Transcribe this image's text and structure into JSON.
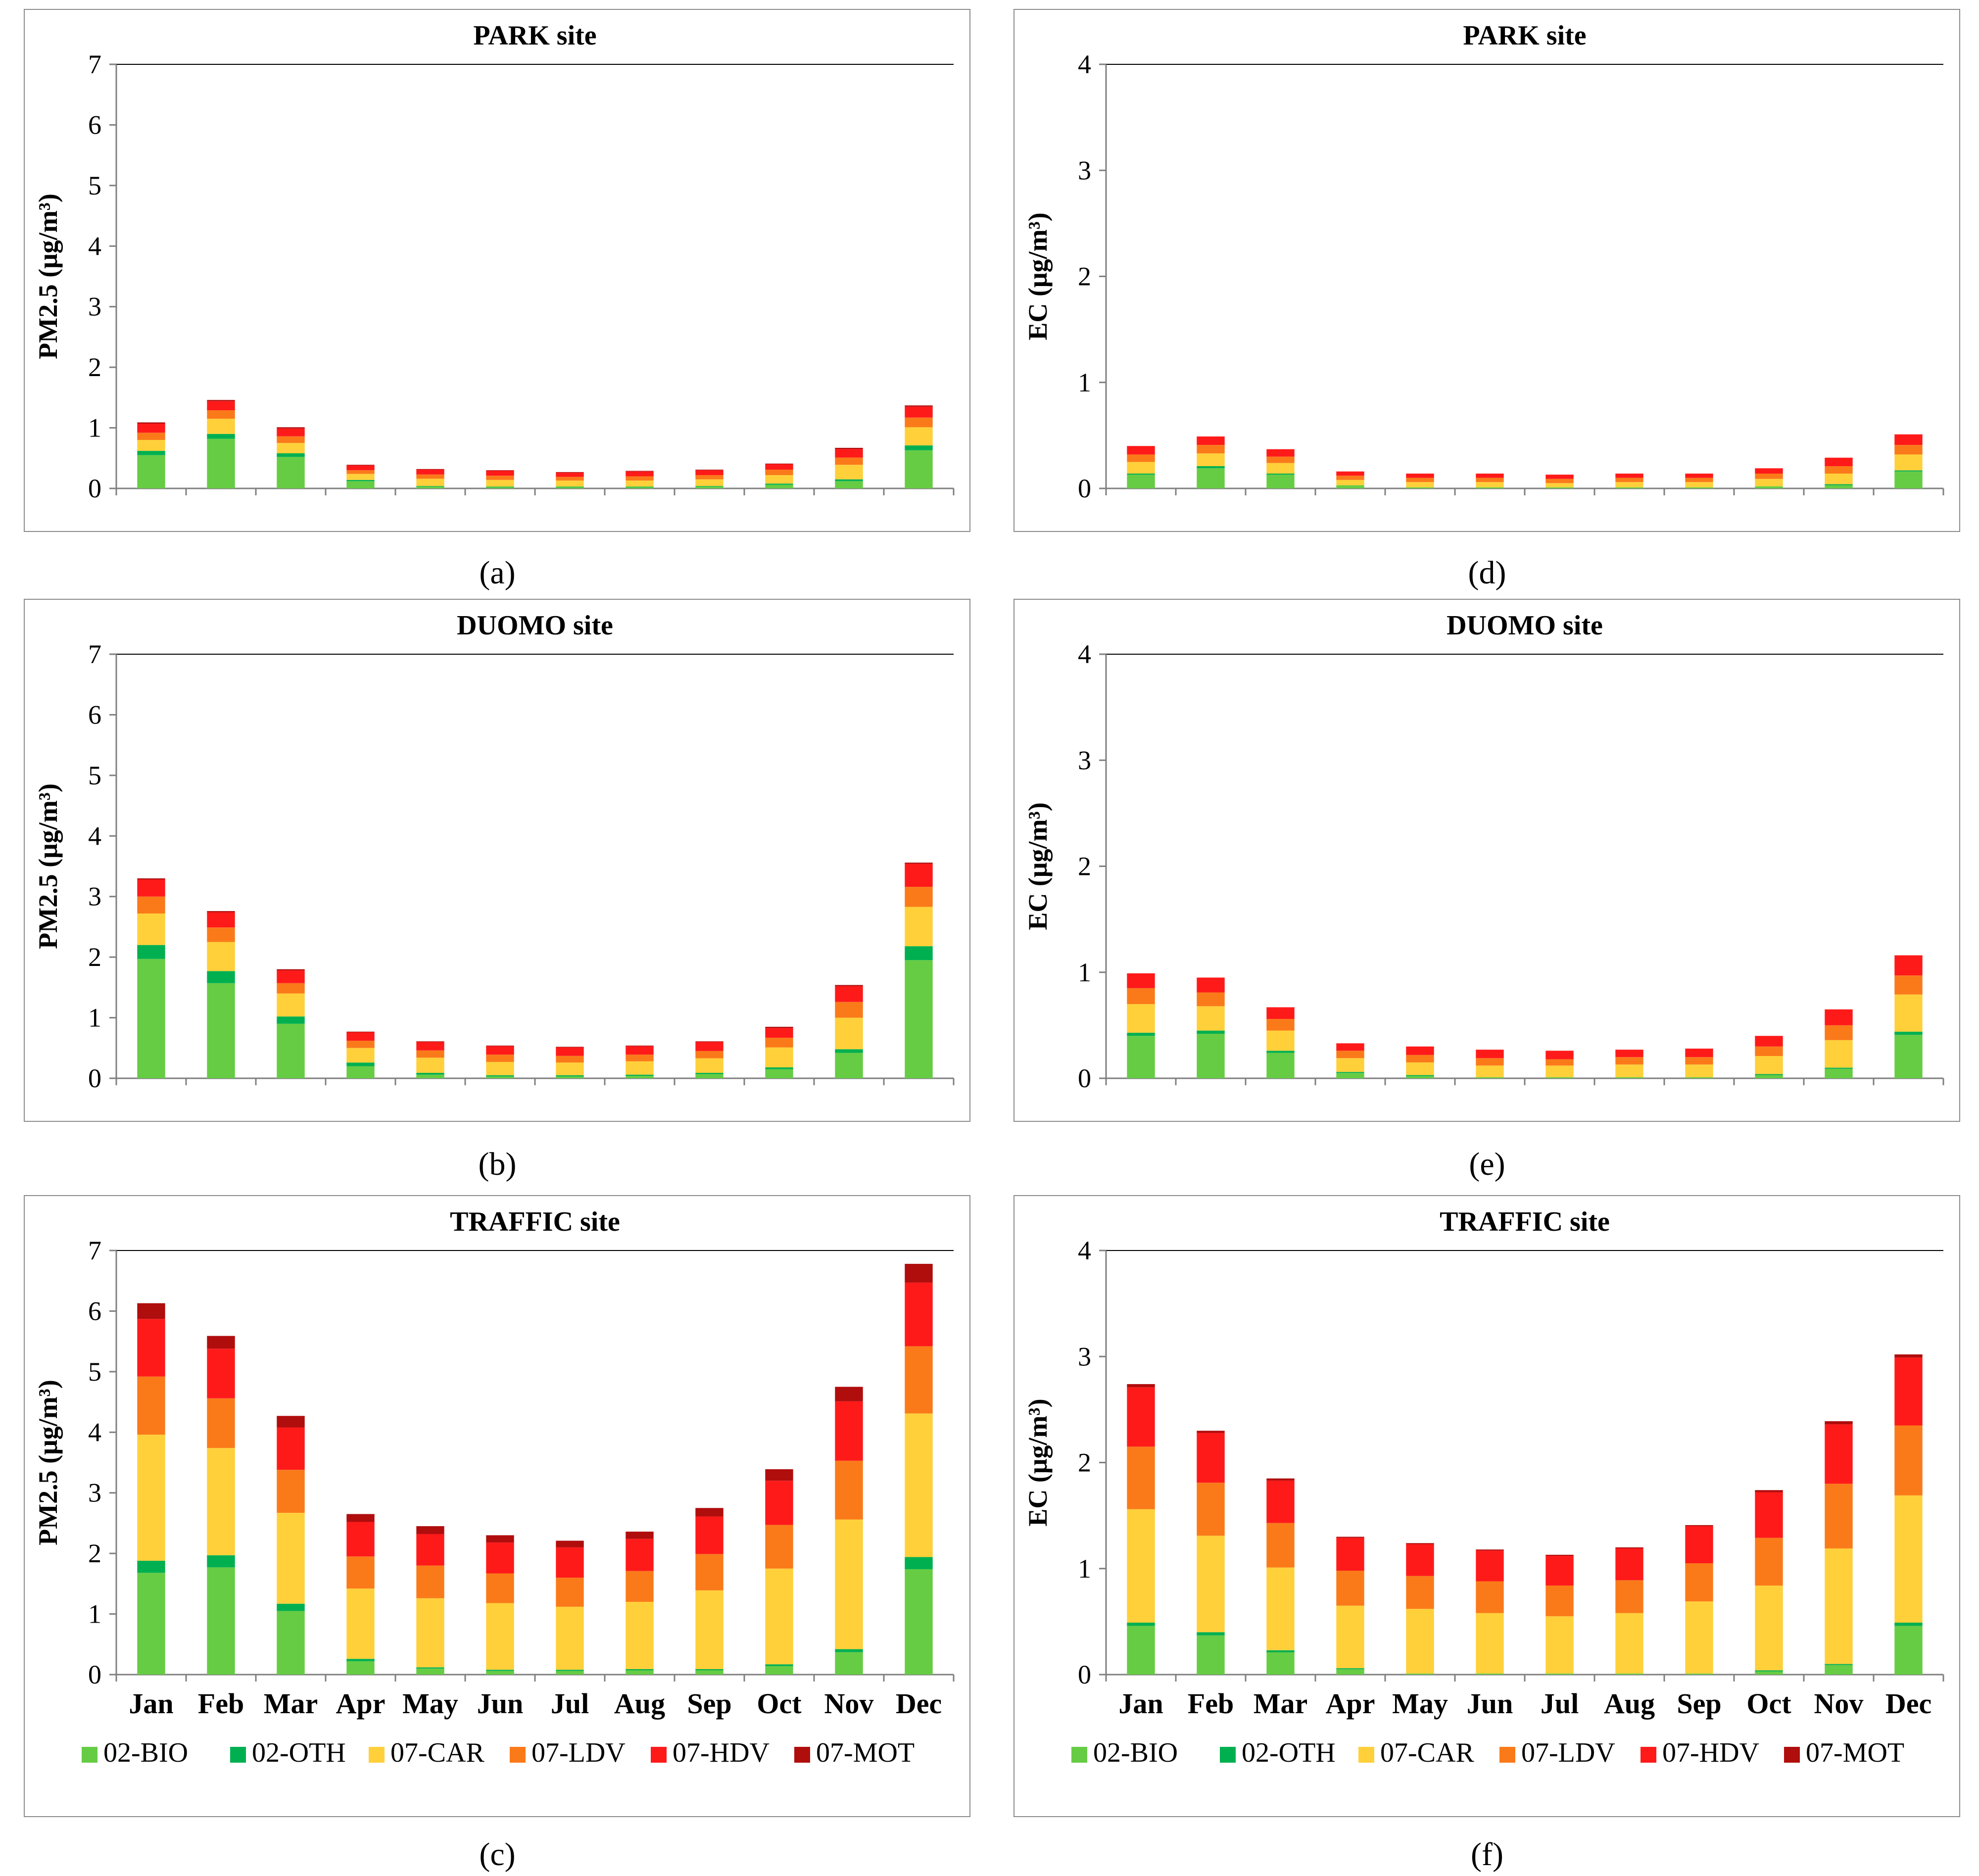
{
  "months": [
    "Jan",
    "Feb",
    "Mar",
    "Apr",
    "May",
    "Jun",
    "Jul",
    "Aug",
    "Sep",
    "Oct",
    "Nov",
    "Dec"
  ],
  "legend": [
    {
      "name": "02-BIO",
      "color": "#66cc44"
    },
    {
      "name": "02-OTH",
      "color": "#00b050"
    },
    {
      "name": "07-CAR",
      "color": "#ffd03a"
    },
    {
      "name": "07-LDV",
      "color": "#fa7a1a"
    },
    {
      "name": "07-HDV",
      "color": "#ff1a1a"
    },
    {
      "name": "07-MOT",
      "color": "#b00d0d"
    }
  ],
  "chart_data": [
    {
      "id": "a",
      "caption": "(a)",
      "type": "bar",
      "stacked": true,
      "title": "PARK site",
      "ylabel": "PM2.5 (μg/m³)",
      "ylim": [
        0,
        7
      ],
      "yticks": [
        0,
        1,
        2,
        3,
        4,
        5,
        6,
        7
      ],
      "show_xticklabels": false,
      "series": [
        {
          "name": "02-BIO",
          "values": [
            0.55,
            0.82,
            0.52,
            0.12,
            0.03,
            0.02,
            0.02,
            0.02,
            0.03,
            0.06,
            0.12,
            0.63
          ]
        },
        {
          "name": "02-OTH",
          "values": [
            0.07,
            0.08,
            0.06,
            0.02,
            0.01,
            0.01,
            0.01,
            0.01,
            0.01,
            0.02,
            0.03,
            0.08
          ]
        },
        {
          "name": "07-CAR",
          "values": [
            0.18,
            0.25,
            0.17,
            0.1,
            0.12,
            0.11,
            0.1,
            0.1,
            0.11,
            0.14,
            0.24,
            0.3
          ]
        },
        {
          "name": "07-LDV",
          "values": [
            0.12,
            0.14,
            0.11,
            0.06,
            0.07,
            0.07,
            0.06,
            0.07,
            0.07,
            0.09,
            0.12,
            0.16
          ]
        },
        {
          "name": "07-HDV",
          "values": [
            0.15,
            0.15,
            0.13,
            0.08,
            0.08,
            0.08,
            0.07,
            0.08,
            0.08,
            0.09,
            0.14,
            0.18
          ]
        },
        {
          "name": "07-MOT",
          "values": [
            0.02,
            0.02,
            0.02,
            0.01,
            0.01,
            0.01,
            0.01,
            0.01,
            0.01,
            0.01,
            0.02,
            0.02
          ]
        }
      ]
    },
    {
      "id": "b",
      "caption": "(b)",
      "type": "bar",
      "stacked": true,
      "title": "DUOMO site",
      "ylabel": "PM2.5 (μg/m³)",
      "ylim": [
        0,
        7
      ],
      "yticks": [
        0,
        1,
        2,
        3,
        4,
        5,
        6,
        7
      ],
      "show_xticklabels": false,
      "series": [
        {
          "name": "02-BIO",
          "values": [
            1.97,
            1.57,
            0.9,
            0.2,
            0.06,
            0.03,
            0.03,
            0.04,
            0.07,
            0.15,
            0.42,
            1.95
          ]
        },
        {
          "name": "02-OTH",
          "values": [
            0.23,
            0.2,
            0.12,
            0.06,
            0.03,
            0.02,
            0.02,
            0.02,
            0.02,
            0.03,
            0.06,
            0.23
          ]
        },
        {
          "name": "07-CAR",
          "values": [
            0.52,
            0.48,
            0.38,
            0.24,
            0.25,
            0.22,
            0.21,
            0.22,
            0.24,
            0.33,
            0.52,
            0.65
          ]
        },
        {
          "name": "07-LDV",
          "values": [
            0.28,
            0.24,
            0.17,
            0.12,
            0.12,
            0.12,
            0.11,
            0.11,
            0.12,
            0.16,
            0.26,
            0.33
          ]
        },
        {
          "name": "07-HDV",
          "values": [
            0.28,
            0.25,
            0.21,
            0.14,
            0.14,
            0.14,
            0.14,
            0.14,
            0.15,
            0.16,
            0.26,
            0.38
          ]
        },
        {
          "name": "07-MOT",
          "values": [
            0.02,
            0.02,
            0.02,
            0.01,
            0.01,
            0.01,
            0.01,
            0.01,
            0.01,
            0.02,
            0.02,
            0.02
          ]
        }
      ]
    },
    {
      "id": "c",
      "caption": "(c)",
      "type": "bar",
      "stacked": true,
      "title": "TRAFFIC site",
      "ylabel": "PM2.5 (μg/m³)",
      "ylim": [
        0,
        7
      ],
      "yticks": [
        0,
        1,
        2,
        3,
        4,
        5,
        6,
        7
      ],
      "show_xticklabels": true,
      "series": [
        {
          "name": "02-BIO",
          "values": [
            1.68,
            1.77,
            1.05,
            0.22,
            0.1,
            0.06,
            0.06,
            0.07,
            0.07,
            0.14,
            0.37,
            1.74
          ]
        },
        {
          "name": "02-OTH",
          "values": [
            0.2,
            0.2,
            0.12,
            0.04,
            0.02,
            0.02,
            0.02,
            0.02,
            0.02,
            0.03,
            0.05,
            0.2
          ]
        },
        {
          "name": "07-CAR",
          "values": [
            2.08,
            1.77,
            1.5,
            1.16,
            1.14,
            1.1,
            1.04,
            1.11,
            1.3,
            1.58,
            2.14,
            2.37
          ]
        },
        {
          "name": "07-LDV",
          "values": [
            0.96,
            0.82,
            0.71,
            0.53,
            0.54,
            0.49,
            0.48,
            0.51,
            0.6,
            0.72,
            0.97,
            1.11
          ]
        },
        {
          "name": "07-HDV",
          "values": [
            0.95,
            0.82,
            0.7,
            0.57,
            0.52,
            0.51,
            0.5,
            0.53,
            0.62,
            0.73,
            0.98,
            1.05
          ]
        },
        {
          "name": "07-MOT",
          "values": [
            0.26,
            0.21,
            0.19,
            0.13,
            0.13,
            0.12,
            0.11,
            0.12,
            0.14,
            0.19,
            0.24,
            0.31
          ]
        }
      ]
    },
    {
      "id": "d",
      "caption": "(d)",
      "type": "bar",
      "stacked": true,
      "title": "PARK site",
      "ylabel": "EC (μg/m³)",
      "ylim": [
        0,
        4
      ],
      "yticks": [
        0,
        1,
        2,
        3,
        4
      ],
      "show_xticklabels": false,
      "series": [
        {
          "name": "02-BIO",
          "values": [
            0.13,
            0.19,
            0.13,
            0.03,
            0.01,
            0.01,
            0.01,
            0.01,
            0.01,
            0.02,
            0.03,
            0.16
          ]
        },
        {
          "name": "02-OTH",
          "values": [
            0.01,
            0.02,
            0.01,
            0.0,
            0.0,
            0.0,
            0.0,
            0.0,
            0.0,
            0.0,
            0.01,
            0.01
          ]
        },
        {
          "name": "07-CAR",
          "values": [
            0.11,
            0.12,
            0.1,
            0.05,
            0.05,
            0.05,
            0.04,
            0.05,
            0.05,
            0.07,
            0.1,
            0.15
          ]
        },
        {
          "name": "07-LDV",
          "values": [
            0.07,
            0.08,
            0.06,
            0.04,
            0.04,
            0.04,
            0.04,
            0.04,
            0.04,
            0.05,
            0.07,
            0.09
          ]
        },
        {
          "name": "07-HDV",
          "values": [
            0.08,
            0.08,
            0.07,
            0.04,
            0.04,
            0.04,
            0.04,
            0.04,
            0.04,
            0.05,
            0.08,
            0.1
          ]
        },
        {
          "name": "07-MOT",
          "values": [
            0.0,
            0.0,
            0.0,
            0.0,
            0.0,
            0.0,
            0.0,
            0.0,
            0.0,
            0.0,
            0.0,
            0.0
          ]
        }
      ]
    },
    {
      "id": "e",
      "caption": "(e)",
      "type": "bar",
      "stacked": true,
      "title": "DUOMO site",
      "ylabel": "EC (μg/m³)",
      "ylim": [
        0,
        4
      ],
      "yticks": [
        0,
        1,
        2,
        3,
        4
      ],
      "show_xticklabels": false,
      "series": [
        {
          "name": "02-BIO",
          "values": [
            0.4,
            0.42,
            0.24,
            0.05,
            0.02,
            0.01,
            0.01,
            0.01,
            0.01,
            0.03,
            0.09,
            0.41
          ]
        },
        {
          "name": "02-OTH",
          "values": [
            0.03,
            0.03,
            0.02,
            0.01,
            0.01,
            0.0,
            0.0,
            0.0,
            0.0,
            0.01,
            0.01,
            0.03
          ]
        },
        {
          "name": "07-CAR",
          "values": [
            0.27,
            0.23,
            0.19,
            0.13,
            0.12,
            0.11,
            0.11,
            0.12,
            0.12,
            0.17,
            0.26,
            0.35
          ]
        },
        {
          "name": "07-LDV",
          "values": [
            0.15,
            0.13,
            0.11,
            0.07,
            0.07,
            0.07,
            0.06,
            0.07,
            0.07,
            0.09,
            0.14,
            0.18
          ]
        },
        {
          "name": "07-HDV",
          "values": [
            0.14,
            0.14,
            0.11,
            0.07,
            0.08,
            0.08,
            0.08,
            0.07,
            0.08,
            0.1,
            0.15,
            0.19
          ]
        },
        {
          "name": "07-MOT",
          "values": [
            0.0,
            0.0,
            0.0,
            0.0,
            0.0,
            0.0,
            0.0,
            0.0,
            0.0,
            0.0,
            0.0,
            0.0
          ]
        }
      ]
    },
    {
      "id": "f",
      "caption": "(f)",
      "type": "bar",
      "stacked": true,
      "title": "TRAFFIC site",
      "ylabel": "EC (μg/m³)",
      "ylim": [
        0,
        4
      ],
      "yticks": [
        0,
        1,
        2,
        3,
        4
      ],
      "show_xticklabels": true,
      "series": [
        {
          "name": "02-BIO",
          "values": [
            0.46,
            0.37,
            0.21,
            0.05,
            0.01,
            0.01,
            0.01,
            0.01,
            0.01,
            0.03,
            0.09,
            0.46
          ]
        },
        {
          "name": "02-OTH",
          "values": [
            0.03,
            0.03,
            0.02,
            0.01,
            0.0,
            0.0,
            0.0,
            0.0,
            0.0,
            0.01,
            0.01,
            0.03
          ]
        },
        {
          "name": "07-CAR",
          "values": [
            1.07,
            0.91,
            0.78,
            0.59,
            0.61,
            0.57,
            0.54,
            0.57,
            0.68,
            0.8,
            1.09,
            1.2
          ]
        },
        {
          "name": "07-LDV",
          "values": [
            0.59,
            0.5,
            0.42,
            0.33,
            0.31,
            0.3,
            0.29,
            0.31,
            0.36,
            0.45,
            0.61,
            0.66
          ]
        },
        {
          "name": "07-HDV",
          "values": [
            0.56,
            0.47,
            0.4,
            0.31,
            0.3,
            0.29,
            0.28,
            0.3,
            0.35,
            0.43,
            0.56,
            0.64
          ]
        },
        {
          "name": "07-MOT",
          "values": [
            0.03,
            0.02,
            0.02,
            0.01,
            0.01,
            0.01,
            0.01,
            0.01,
            0.01,
            0.02,
            0.03,
            0.03
          ]
        }
      ]
    }
  ]
}
